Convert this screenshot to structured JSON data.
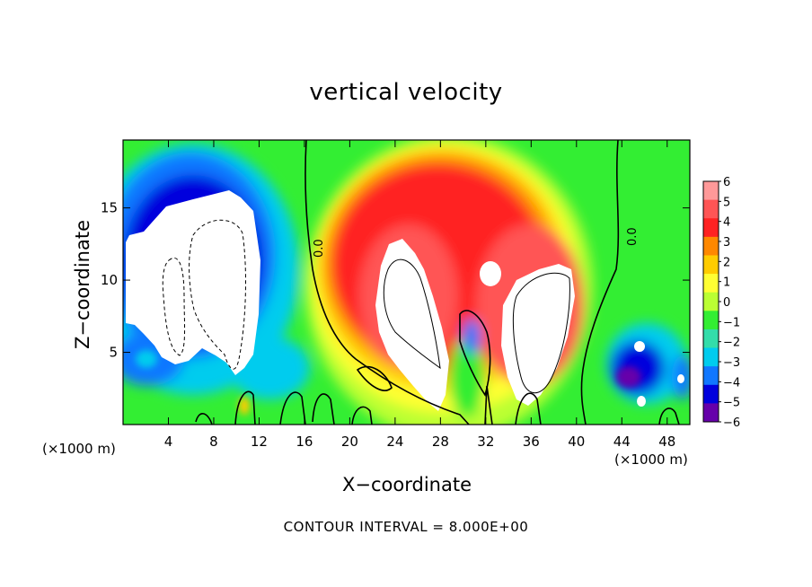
{
  "chart_data": {
    "type": "heatmap",
    "title": "vertical velocity",
    "xlabel": "X−coordinate",
    "ylabel": "Z−coordinate",
    "x_unit_left": "(×1000 m)",
    "x_unit_right": "(×1000 m)",
    "note": "CONTOUR INTERVAL = 8.000E+00",
    "xlim": [
      0,
      50
    ],
    "ylim": [
      0,
      19.7
    ],
    "x_ticks": [
      4,
      8,
      12,
      16,
      20,
      24,
      28,
      32,
      36,
      40,
      44,
      48
    ],
    "x_tick_labels": [
      "4",
      "8",
      "12",
      "16",
      "20",
      "24",
      "28",
      "32",
      "36",
      "40",
      "44",
      "48"
    ],
    "y_ticks": [
      5,
      10,
      15
    ],
    "y_tick_labels": [
      "5",
      "10",
      "15"
    ],
    "colorbar": {
      "levels": [
        6,
        5,
        4,
        3,
        2,
        1,
        0,
        -1,
        -2,
        -3,
        -4,
        -5,
        -6
      ],
      "labels": [
        "6",
        "5",
        "4",
        "3",
        "2",
        "1",
        "0",
        "−1",
        "−2",
        "−3",
        "−4",
        "−5",
        "−6"
      ],
      "colors": [
        "#ff9999",
        "#ff5555",
        "#ff2222",
        "#ff8800",
        "#ffcc00",
        "#ffff33",
        "#bbff33",
        "#33ee33",
        "#33ddaa",
        "#00ccee",
        "#1177ff",
        "#0000dd",
        "#6600aa"
      ]
    },
    "contour_labels": [
      "0.0",
      "0.0"
    ],
    "features": [
      {
        "name": "downdraft-core",
        "x": [
          0.4,
          11.6
        ],
        "z": [
          3.5,
          16.4
        ],
        "sign": "negative"
      },
      {
        "name": "updraft-core-left",
        "x": [
          22.5,
          28
        ],
        "z": [
          1.5,
          12.5
        ],
        "sign": "positive"
      },
      {
        "name": "updraft-core-right",
        "x": [
          33,
          40
        ],
        "z": [
          1,
          11.5
        ],
        "sign": "positive"
      }
    ]
  }
}
